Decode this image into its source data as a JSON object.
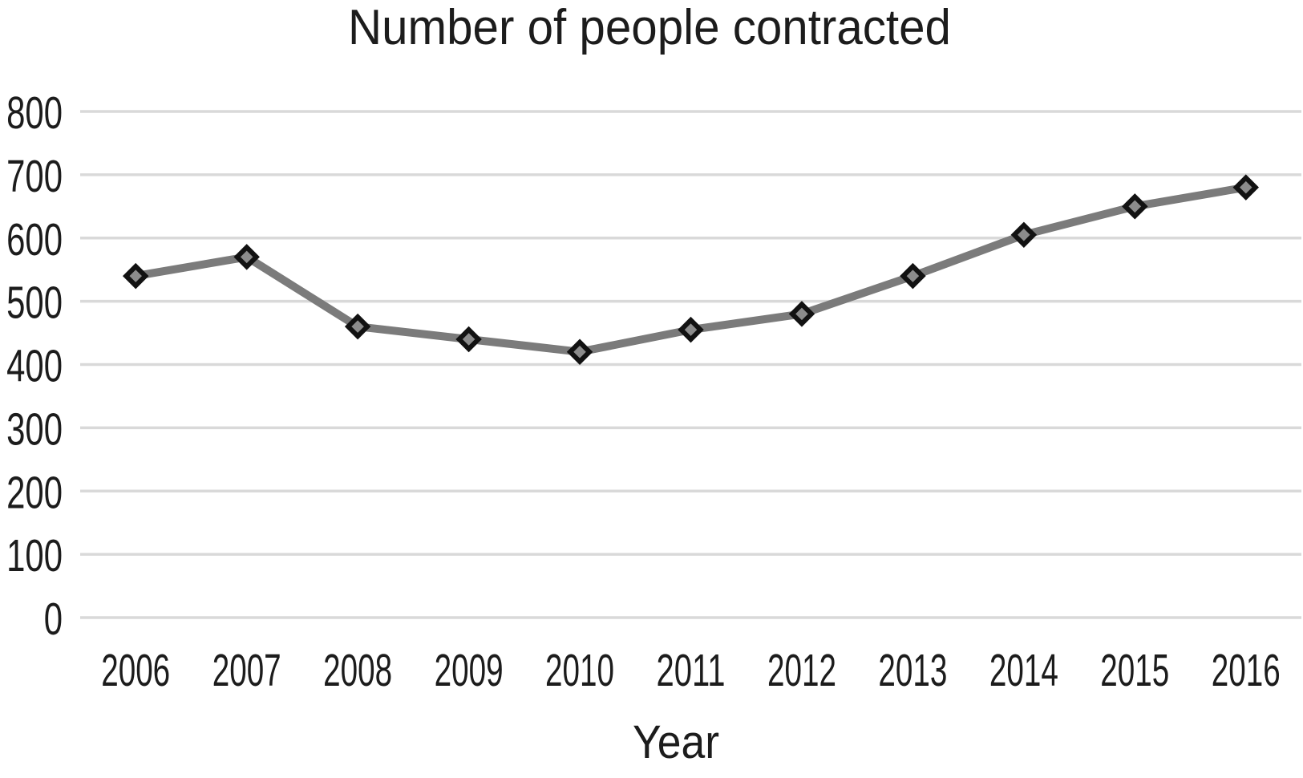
{
  "chart_data": {
    "type": "line",
    "title": "Number of people contracted",
    "xlabel": "Year",
    "ylabel": "",
    "categories": [
      "2006",
      "2007",
      "2008",
      "2009",
      "2010",
      "2011",
      "2012",
      "2013",
      "2014",
      "2015",
      "2016"
    ],
    "series": [
      {
        "name": "Number of people contracted",
        "values": [
          540,
          570,
          460,
          440,
          420,
          455,
          480,
          540,
          605,
          650,
          680
        ]
      }
    ],
    "ylim": [
      0,
      800
    ],
    "ytick_interval": 100,
    "ytick_labels": [
      "0",
      "100",
      "200",
      "300",
      "400",
      "500",
      "600",
      "700",
      "800"
    ],
    "grid": "horizontal-only",
    "legend": "none",
    "marker": "diamond",
    "colors": {
      "line": "#7b7b7b",
      "marker_fill": "#8c8c8c",
      "marker_stroke": "#121212",
      "gridline": "#d9d9d9",
      "text": "#1c1c1c",
      "background": "#ffffff"
    }
  }
}
